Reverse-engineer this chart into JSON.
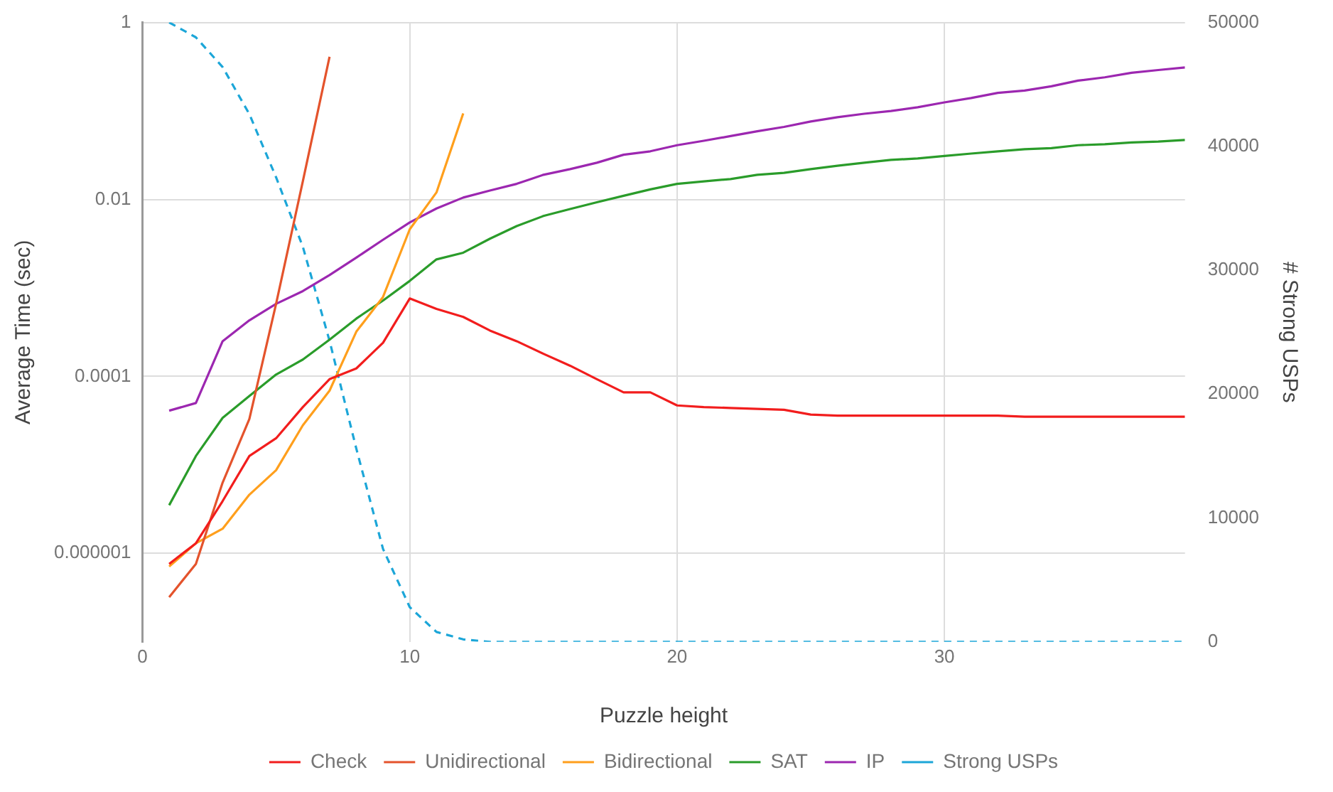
{
  "chart_data": {
    "type": "line",
    "xlabel": "Puzzle height",
    "ylabel": "Average Time (sec)",
    "y2label": "# Strong USPs",
    "x": [
      1,
      2,
      3,
      4,
      5,
      6,
      7,
      8,
      9,
      10,
      11,
      12,
      13,
      14,
      15,
      16,
      17,
      18,
      19,
      20,
      21,
      22,
      23,
      24,
      25,
      26,
      27,
      28,
      29,
      30,
      31,
      32,
      33,
      34,
      35,
      36,
      37,
      38,
      39
    ],
    "series": [
      {
        "name": "Check",
        "color": "#f21d1d",
        "values": [
          7.6e-07,
          1.3e-06,
          3.9e-06,
          1.26e-05,
          2e-05,
          4.5e-05,
          9.3e-05,
          0.000123,
          0.00024,
          0.00076,
          0.00058,
          0.00047,
          0.00033,
          0.00025,
          0.00018,
          0.000132,
          9.3e-05,
          6.6e-05,
          6.6e-05,
          4.7e-05,
          4.5e-05,
          4.4e-05,
          4.3e-05,
          4.2e-05,
          3.7e-05,
          3.6e-05,
          3.6e-05,
          3.6e-05,
          3.6e-05,
          3.6e-05,
          3.6e-05,
          3.6e-05,
          3.5e-05,
          3.5e-05,
          3.5e-05,
          3.5e-05,
          3.5e-05,
          3.5e-05,
          3.5e-05
        ]
      },
      {
        "name": "Unidirectional",
        "color": "#e4532c",
        "values": [
          3.2e-07,
          7.6e-07,
          6.3e-06,
          3.3e-05,
          0.00066,
          0.016,
          0.41,
          null,
          null,
          null,
          null,
          null,
          null,
          null,
          null,
          null,
          null,
          null,
          null,
          null,
          null,
          null,
          null,
          null,
          null,
          null,
          null,
          null,
          null,
          null,
          null,
          null,
          null,
          null,
          null,
          null,
          null,
          null,
          null
        ]
      },
      {
        "name": "Bidirectional",
        "color": "#ff9f1c",
        "values": [
          7.1e-07,
          1.3e-06,
          1.9e-06,
          4.6e-06,
          8.7e-06,
          2.8e-05,
          6.9e-05,
          0.00032,
          0.00079,
          0.0046,
          0.012,
          0.094,
          null,
          null,
          null,
          null,
          null,
          null,
          null,
          null,
          null,
          null,
          null,
          null,
          null,
          null,
          null,
          null,
          null,
          null,
          null,
          null,
          null,
          null,
          null,
          null,
          null,
          null,
          null
        ]
      },
      {
        "name": "SAT",
        "color": "#2a9c2a",
        "values": [
          3.5e-06,
          1.26e-05,
          3.4e-05,
          6e-05,
          0.000105,
          0.000155,
          0.00026,
          0.00045,
          0.00072,
          0.0012,
          0.0021,
          0.0025,
          0.0036,
          0.005,
          0.0065,
          0.0078,
          0.0093,
          0.011,
          0.013,
          0.015,
          0.016,
          0.017,
          0.019,
          0.02,
          0.022,
          0.024,
          0.026,
          0.028,
          0.029,
          0.031,
          0.033,
          0.035,
          0.037,
          0.038,
          0.041,
          0.042,
          0.044,
          0.045,
          0.047
        ]
      },
      {
        "name": "IP",
        "color": "#9c27b0",
        "values": [
          4.1e-05,
          5e-05,
          0.00025,
          0.00043,
          0.00066,
          0.00092,
          0.0014,
          0.0022,
          0.0035,
          0.0055,
          0.0079,
          0.0105,
          0.0126,
          0.015,
          0.019,
          0.022,
          0.026,
          0.032,
          0.035,
          0.041,
          0.046,
          0.052,
          0.059,
          0.066,
          0.076,
          0.085,
          0.093,
          0.1,
          0.11,
          0.125,
          0.14,
          0.16,
          0.17,
          0.19,
          0.22,
          0.24,
          0.27,
          0.29,
          0.31
        ]
      },
      {
        "name": "Strong USPs",
        "color": "#1ca6d8",
        "axis": "y2",
        "line_style": "dashed",
        "values": [
          50000,
          48800,
          46400,
          42600,
          37500,
          31900,
          24300,
          15600,
          7500,
          2800,
          800,
          200,
          0,
          0,
          0,
          0,
          0,
          0,
          0,
          0,
          0,
          0,
          0,
          0,
          0,
          0,
          0,
          0,
          0,
          0,
          0,
          0,
          0,
          0,
          0,
          0,
          0,
          0,
          0
        ]
      }
    ],
    "xlim": [
      0,
      39
    ],
    "xticks": [
      0,
      10,
      20,
      30
    ],
    "ylim": [
      1e-07,
      1
    ],
    "yticks": [
      {
        "value": 1e-06,
        "label": "0.000001"
      },
      0.0001,
      0.01,
      1
    ],
    "y2lim": [
      0,
      50000
    ],
    "y2ticks": [
      0,
      10000,
      20000,
      30000,
      40000,
      50000
    ],
    "log": "y",
    "grid": true,
    "legend": "bottom",
    "marker": "none",
    "line_style": "solid"
  }
}
